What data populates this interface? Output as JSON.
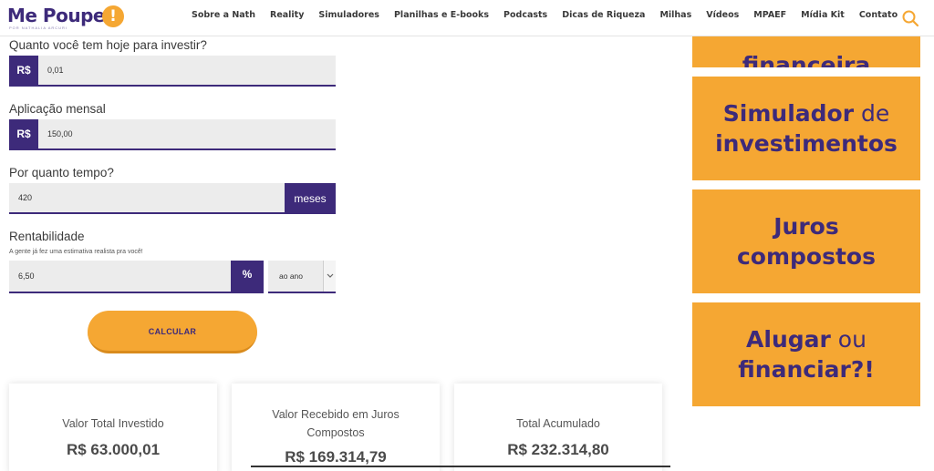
{
  "header": {
    "logo": {
      "name": "Me Poupe",
      "badge": "!",
      "tagline": "POR NATHALIA ARCURI"
    },
    "nav": [
      "Sobre a Nath",
      "Reality",
      "Simuladores",
      "Planilhas e E-books",
      "Podcasts",
      "Dicas de Riqueza",
      "Milhas",
      "Vídeos",
      "MPAEF",
      "Mídia Kit",
      "Contato"
    ],
    "search_icon": "search-icon"
  },
  "form": {
    "initial": {
      "label": "Quanto você tem hoje para investir?",
      "prefix": "R$",
      "value": "0,01"
    },
    "monthly": {
      "label": "Aplicação mensal",
      "prefix": "R$",
      "value": "150,00"
    },
    "period": {
      "label": "Por quanto tempo?",
      "value": "420",
      "suffix": "meses"
    },
    "rate": {
      "label": "Rentabilidade",
      "hint": "A gente já fez uma estimativa realista pra você!",
      "value": "6,50",
      "suffix": "%",
      "period_select": "ao ano"
    },
    "calculate_label": "CALCULAR"
  },
  "results": [
    {
      "label": "Valor Total Investido",
      "value": "R$ 63.000,01"
    },
    {
      "label": "Valor Recebido em Juros Compostos",
      "value": "R$ 169.314,79"
    },
    {
      "label": "Total Acumulado",
      "value": "R$ 232.314,80"
    }
  ],
  "sidebar": {
    "banner_top_partial": "financeira",
    "banners": [
      {
        "bold1": "Simulador",
        "light1": " de",
        "bold2": "investimentos"
      },
      {
        "bold1": "Juros",
        "light1": "",
        "bold2": "compostos"
      },
      {
        "bold1": "Alugar",
        "light1": " ou",
        "bold2": "financiar?!"
      }
    ]
  },
  "colors": {
    "brand_purple": "#3d2a7a",
    "brand_orange": "#f5a733"
  }
}
